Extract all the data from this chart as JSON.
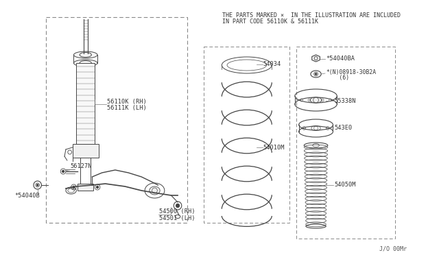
{
  "bg_color": "#ffffff",
  "line_color": "#444444",
  "label_color": "#333333",
  "dash_color": "#888888",
  "header_text_line1": "THE PARTS MARKED ×  IN THE ILLUSTRATION ARE INCLUDED",
  "header_text_line2": "IN PART CODE 56110K & 56111K",
  "footer_text": "J/O 00Mr",
  "labels": {
    "56110K_RH": "56110K (RH)",
    "56111K_LH": "56111K (LH)",
    "56127N": "56127N",
    "54040B": "*54040B",
    "54500_RH": "54500 (RH)",
    "54501_LH": "54501 (LH)",
    "54034": "54034",
    "54010M": "54010M",
    "54040BA": "*54040BA",
    "08918_line1": "*(N)08918-30B2A",
    "08918_line2": "    (6)",
    "55338N": "55338N",
    "543E0": "543E0",
    "54050M": "54050M"
  }
}
